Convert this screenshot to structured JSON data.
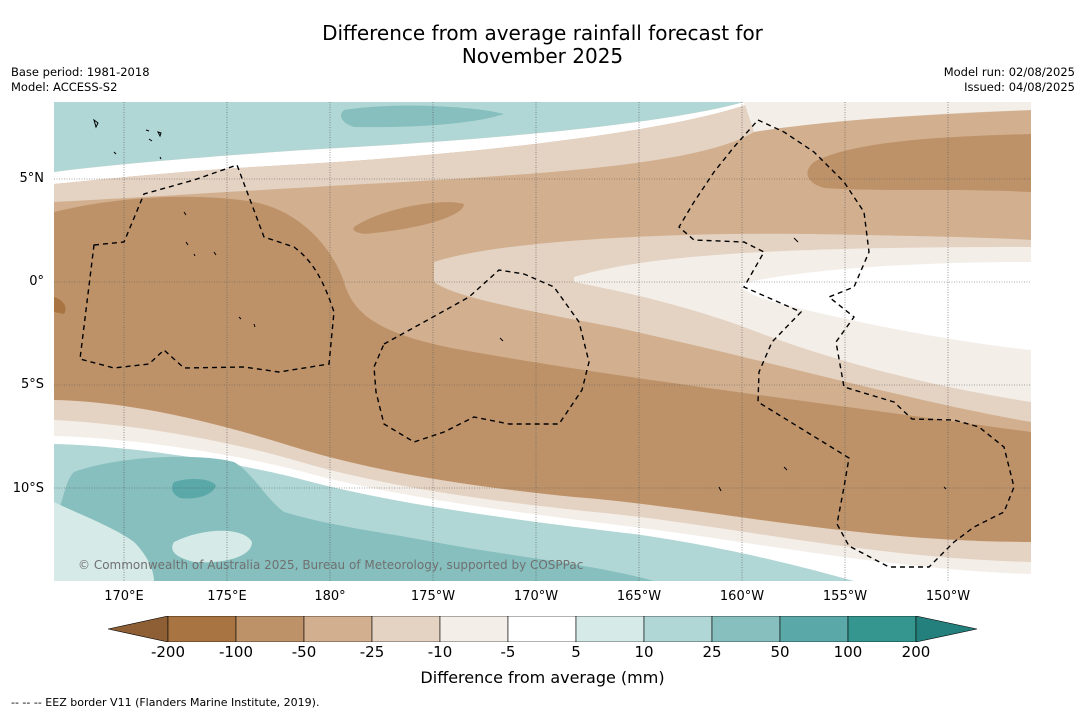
{
  "title": {
    "line1": "Difference from average rainfall forecast for",
    "line2": "November 2025"
  },
  "meta": {
    "base_period": "Base period: 1981-2018",
    "model": "Model: ACCESS-S2",
    "model_run": "Model run: 02/08/2025",
    "issued": "Issued: 04/08/2025"
  },
  "map": {
    "lat_ticks": [
      "5°N",
      "0°",
      "5°S",
      "10°S"
    ],
    "lon_ticks": [
      "170°E",
      "175°E",
      "180°",
      "175°W",
      "170°W",
      "165°W",
      "160°W",
      "155°W",
      "150°W"
    ],
    "credit": "© Commonwealth of Australia 2025, Bureau of Meteorology, supported by COSPPac",
    "border_legend": "-- -- -- EEZ border V11 (Flanders Marine Institute, 2019)."
  },
  "colorbar": {
    "label": "Difference from average (mm)",
    "ticks": [
      "-200",
      "-100",
      "-50",
      "-25",
      "-10",
      "-5",
      "5",
      "10",
      "25",
      "50",
      "100",
      "200"
    ],
    "colors": [
      "#8e5f35",
      "#a87442",
      "#be9269",
      "#d2b08f",
      "#e4d2c2",
      "#f3eee8",
      "#ffffff",
      "#d6ebe8",
      "#b0d7d5",
      "#86bfbe",
      "#5aa9a8",
      "#35968f",
      "#24807c"
    ]
  }
}
